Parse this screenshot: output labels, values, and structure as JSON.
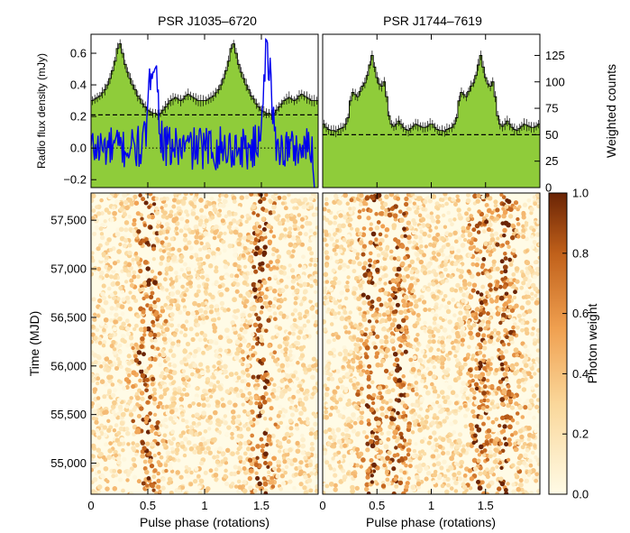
{
  "figure": {
    "colors": {
      "histogram_fill": "#8fcc3a",
      "histogram_line": "#000000",
      "radio_line": "#0000ee",
      "radio_axis_label": "#0000cc",
      "dashed_background": "#000000",
      "heat_low": "#fffbe6",
      "heat_mid": "#f0a050",
      "heat_high": "#7a2a05"
    }
  },
  "chart_data": [
    {
      "id": "profile-left",
      "type": "area",
      "title": "PSR J1035–6720",
      "xlabel": "",
      "ylabel": "Radio flux density (mJy)",
      "xlim": [
        0,
        2
      ],
      "ylim": [
        -0.25,
        0.72
      ],
      "yticks": [
        -0.2,
        0.0,
        0.2,
        0.4,
        0.6
      ],
      "ytick_labels": [
        "−0.2",
        "0.0",
        "0.2",
        "0.4",
        "0.6"
      ],
      "background_level_dashed": 0.21,
      "zero_line_dotted": 0.0,
      "gamma_profile": {
        "bins_per_rotation": 45,
        "x_peak_phases": [
          0.5,
          1.5
        ],
        "shape": [
          0.3,
          0.31,
          0.32,
          0.33,
          0.35,
          0.37,
          0.4,
          0.44,
          0.49,
          0.55,
          0.63,
          0.66,
          0.6,
          0.53,
          0.48,
          0.44,
          0.4,
          0.37,
          0.33,
          0.31,
          0.28,
          0.26,
          0.24,
          0.23,
          0.22,
          0.22,
          0.21,
          0.22,
          0.24,
          0.26,
          0.28,
          0.3,
          0.31,
          0.32,
          0.31,
          0.3,
          0.31,
          0.33,
          0.34,
          0.33,
          0.32,
          0.31,
          0.3,
          0.3,
          0.3
        ],
        "units": "mJy-equivalent on radio axis"
      },
      "radio_series": {
        "name": "",
        "peak_phases": [
          0.55,
          1.55
        ],
        "peak_value": 0.6,
        "baseline": 0.0,
        "noise_amplitude": 0.1
      }
    },
    {
      "id": "profile-right",
      "type": "area",
      "title": "PSR J1744–7619",
      "xlabel": "",
      "ylabel": "Weighted counts",
      "xlim": [
        0,
        2
      ],
      "ylim": [
        0,
        145
      ],
      "yticks": [
        0,
        25,
        50,
        75,
        100,
        125
      ],
      "ytick_labels": [
        "0",
        "25",
        "50",
        "75",
        "100",
        "125"
      ],
      "background_level_dashed": 50,
      "gamma_profile": {
        "bins_per_rotation": 45,
        "shape": [
          60,
          57,
          55,
          54,
          54,
          53,
          55,
          56,
          57,
          60,
          66,
          82,
          90,
          88,
          86,
          91,
          96,
          99,
          106,
          116,
          125,
          114,
          104,
          98,
          96,
          100,
          86,
          68,
          60,
          58,
          60,
          63,
          60,
          57,
          55,
          54,
          56,
          58,
          60,
          59,
          58,
          57,
          57,
          58,
          60
        ]
      }
    },
    {
      "id": "phaseogram-left",
      "type": "heatmap",
      "xlabel": "Pulse phase (rotations)",
      "ylabel": "Time (MJD)",
      "xlim": [
        0,
        2
      ],
      "ylim": [
        54680,
        57780
      ],
      "xticks": [
        0,
        0.5,
        1,
        1.5
      ],
      "xtick_labels": [
        "0",
        "0.5",
        "1",
        "1.5"
      ],
      "yticks": [
        55000,
        55500,
        56000,
        56500,
        57000,
        57500
      ],
      "ytick_labels": [
        "55,000",
        "55,500",
        "56,000",
        "56,500",
        "57,000",
        "57,500"
      ],
      "pulse_phases": [
        0.5,
        1.5
      ]
    },
    {
      "id": "phaseogram-right",
      "type": "heatmap",
      "xlabel": "Pulse phase (rotations)",
      "xlim": [
        0,
        2
      ],
      "ylim": [
        54680,
        57780
      ],
      "xticks": [
        0,
        0.5,
        1,
        1.5
      ],
      "xtick_labels": [
        "0",
        "0.5",
        "1",
        "1.5"
      ],
      "pulse_phases": [
        0.45,
        0.7,
        1.45,
        1.7
      ]
    },
    {
      "id": "colorbar",
      "type": "heatmap",
      "ylabel": "Photon weight",
      "ylim": [
        0,
        1
      ],
      "yticks": [
        0,
        0.2,
        0.4,
        0.6,
        0.8,
        1.0
      ],
      "ytick_labels": [
        "0.0",
        "0.2",
        "0.4",
        "0.6",
        "0.8",
        "1.0"
      ]
    }
  ]
}
